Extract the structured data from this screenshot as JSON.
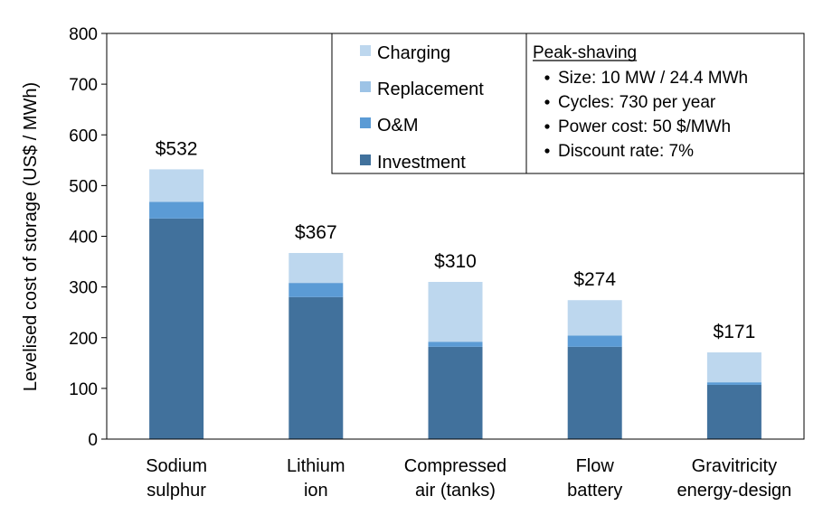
{
  "chart_data": {
    "type": "bar",
    "stacked": true,
    "ylabel": "Levelised cost of storage (US$ / MWh)",
    "ylim": [
      0,
      800
    ],
    "yticks": [
      0,
      100,
      200,
      300,
      400,
      500,
      600,
      700,
      800
    ],
    "grid": false,
    "categories": [
      [
        "Sodium",
        "sulphur"
      ],
      [
        "Lithium",
        "ion"
      ],
      [
        "Compressed",
        "air (tanks)"
      ],
      [
        "Flow",
        "battery"
      ],
      [
        "Gravitricity",
        "energy-design"
      ]
    ],
    "series": [
      {
        "name": "Investment",
        "color": "#41719C",
        "values": [
          435,
          280,
          182,
          182,
          107
        ]
      },
      {
        "name": "O&M",
        "color": "#5B9BD5",
        "values": [
          33,
          28,
          10,
          22,
          5
        ]
      },
      {
        "name": "Replacement",
        "color": "#9DC3E6",
        "values": [
          0,
          0,
          0,
          0,
          0
        ]
      },
      {
        "name": "Charging",
        "color": "#BDD7EE",
        "values": [
          64,
          59,
          118,
          70,
          59
        ]
      }
    ],
    "totals": [
      "$532",
      "$367",
      "$310",
      "$274",
      "$171"
    ],
    "legend_order": [
      "Charging",
      "Replacement",
      "O&M",
      "Investment"
    ],
    "legend_position": "top-right",
    "info_box": {
      "title": "Peak-shaving",
      "items": [
        "Size: 10 MW / 24.4 MWh",
        "Cycles: 730 per year",
        "Power cost: 50 $/MWh",
        "Discount rate: 7%"
      ]
    }
  }
}
